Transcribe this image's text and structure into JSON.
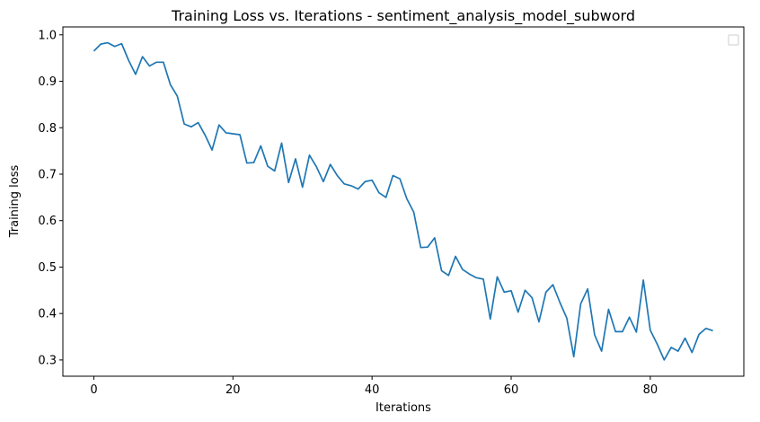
{
  "chart_data": {
    "type": "line",
    "title": "Training Loss vs. Iterations - sentiment_analysis_model_subword",
    "xlabel": "Iterations",
    "ylabel": "Training loss",
    "xlim": [
      -4.45,
      93.45
    ],
    "ylim": [
      0.265,
      1.017
    ],
    "xticks": [
      0,
      20,
      40,
      60,
      80
    ],
    "yticks": [
      0.3,
      0.4,
      0.5,
      0.6,
      0.7,
      0.8,
      0.9,
      1.0
    ],
    "grid": false,
    "legend": "top-right, empty",
    "series": [
      {
        "color": "#1f77b4",
        "x": [
          0,
          1,
          2,
          3,
          4,
          5,
          6,
          7,
          8,
          9,
          10,
          11,
          12,
          13,
          14,
          15,
          16,
          17,
          18,
          19,
          20,
          21,
          22,
          23,
          24,
          25,
          26,
          27,
          28,
          29,
          30,
          31,
          32,
          33,
          34,
          35,
          36,
          37,
          38,
          39,
          40,
          41,
          42,
          43,
          44,
          45,
          46,
          47,
          48,
          49,
          50,
          51,
          52,
          53,
          54,
          55,
          56,
          57,
          58,
          59,
          60,
          61,
          62,
          63,
          64,
          65,
          66,
          67,
          68,
          69,
          70,
          71,
          72,
          73,
          74,
          75,
          76,
          77,
          78,
          79,
          80,
          81,
          82,
          83,
          84,
          85,
          86,
          87,
          88,
          89
        ],
        "values": [
          0.965,
          0.98,
          0.983,
          0.975,
          0.981,
          0.945,
          0.915,
          0.953,
          0.933,
          0.941,
          0.941,
          0.893,
          0.868,
          0.808,
          0.802,
          0.811,
          0.784,
          0.752,
          0.806,
          0.789,
          0.787,
          0.785,
          0.724,
          0.725,
          0.761,
          0.717,
          0.707,
          0.767,
          0.682,
          0.733,
          0.672,
          0.741,
          0.716,
          0.684,
          0.721,
          0.697,
          0.679,
          0.675,
          0.668,
          0.684,
          0.687,
          0.66,
          0.65,
          0.697,
          0.69,
          0.647,
          0.618,
          0.542,
          0.543,
          0.563,
          0.492,
          0.482,
          0.523,
          0.495,
          0.485,
          0.477,
          0.474,
          0.388,
          0.479,
          0.446,
          0.449,
          0.403,
          0.45,
          0.434,
          0.382,
          0.446,
          0.462,
          0.424,
          0.39,
          0.307,
          0.421,
          0.453,
          0.354,
          0.319,
          0.409,
          0.361,
          0.361,
          0.392,
          0.36,
          0.472,
          0.364,
          0.334,
          0.3,
          0.327,
          0.319,
          0.347,
          0.316,
          0.355,
          0.368,
          0.363
        ]
      }
    ]
  }
}
